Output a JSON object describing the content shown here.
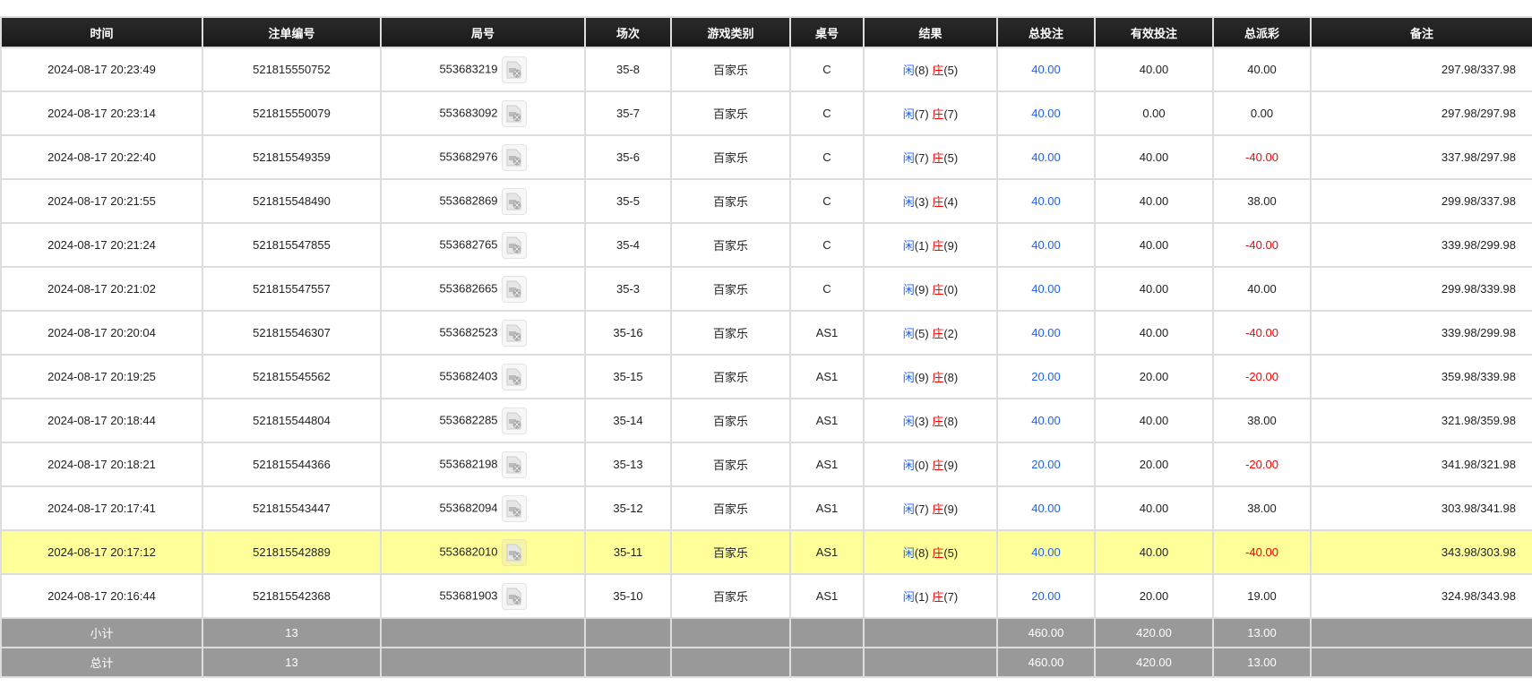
{
  "headers": [
    "时间",
    "注单编号",
    "局号",
    "场次",
    "游戏类别",
    "桌号",
    "结果",
    "总投注",
    "有效投注",
    "总派彩",
    "备注"
  ],
  "result_labels": {
    "player": "闲",
    "banker": "庄"
  },
  "colors": {
    "header_bg": "#1c1c1c",
    "player": "#1f5fff",
    "banker": "#ff0000",
    "total_bet": "#1f5fff",
    "negative_payout": "#ff0000",
    "highlight_row": "#ffff99",
    "summary_bg": "#999999"
  },
  "rows": [
    {
      "time": "2024-08-17 20:23:49",
      "bet_no": "521815550752",
      "round": "553683219",
      "session": "35-8",
      "game": "百家乐",
      "table": "C",
      "player": "(8)",
      "banker": "(5)",
      "total_bet": "40.00",
      "valid_bet": "40.00",
      "payout": "40.00",
      "note": "297.98/337.98",
      "highlight": false
    },
    {
      "time": "2024-08-17 20:23:14",
      "bet_no": "521815550079",
      "round": "553683092",
      "session": "35-7",
      "game": "百家乐",
      "table": "C",
      "player": "(7)",
      "banker": "(7)",
      "total_bet": "40.00",
      "valid_bet": "0.00",
      "payout": "0.00",
      "note": "297.98/297.98",
      "highlight": false
    },
    {
      "time": "2024-08-17 20:22:40",
      "bet_no": "521815549359",
      "round": "553682976",
      "session": "35-6",
      "game": "百家乐",
      "table": "C",
      "player": "(7)",
      "banker": "(5)",
      "total_bet": "40.00",
      "valid_bet": "40.00",
      "payout": "-40.00",
      "note": "337.98/297.98",
      "highlight": false
    },
    {
      "time": "2024-08-17 20:21:55",
      "bet_no": "521815548490",
      "round": "553682869",
      "session": "35-5",
      "game": "百家乐",
      "table": "C",
      "player": "(3)",
      "banker": "(4)",
      "total_bet": "40.00",
      "valid_bet": "40.00",
      "payout": "38.00",
      "note": "299.98/337.98",
      "highlight": false
    },
    {
      "time": "2024-08-17 20:21:24",
      "bet_no": "521815547855",
      "round": "553682765",
      "session": "35-4",
      "game": "百家乐",
      "table": "C",
      "player": "(1)",
      "banker": "(9)",
      "total_bet": "40.00",
      "valid_bet": "40.00",
      "payout": "-40.00",
      "note": "339.98/299.98",
      "highlight": false
    },
    {
      "time": "2024-08-17 20:21:02",
      "bet_no": "521815547557",
      "round": "553682665",
      "session": "35-3",
      "game": "百家乐",
      "table": "C",
      "player": "(9)",
      "banker": "(0)",
      "total_bet": "40.00",
      "valid_bet": "40.00",
      "payout": "40.00",
      "note": "299.98/339.98",
      "highlight": false
    },
    {
      "time": "2024-08-17 20:20:04",
      "bet_no": "521815546307",
      "round": "553682523",
      "session": "35-16",
      "game": "百家乐",
      "table": "AS1",
      "player": "(5)",
      "banker": "(2)",
      "total_bet": "40.00",
      "valid_bet": "40.00",
      "payout": "-40.00",
      "note": "339.98/299.98",
      "highlight": false
    },
    {
      "time": "2024-08-17 20:19:25",
      "bet_no": "521815545562",
      "round": "553682403",
      "session": "35-15",
      "game": "百家乐",
      "table": "AS1",
      "player": "(9)",
      "banker": "(8)",
      "total_bet": "20.00",
      "valid_bet": "20.00",
      "payout": "-20.00",
      "note": "359.98/339.98",
      "highlight": false
    },
    {
      "time": "2024-08-17 20:18:44",
      "bet_no": "521815544804",
      "round": "553682285",
      "session": "35-14",
      "game": "百家乐",
      "table": "AS1",
      "player": "(3)",
      "banker": "(8)",
      "total_bet": "40.00",
      "valid_bet": "40.00",
      "payout": "38.00",
      "note": "321.98/359.98",
      "highlight": false
    },
    {
      "time": "2024-08-17 20:18:21",
      "bet_no": "521815544366",
      "round": "553682198",
      "session": "35-13",
      "game": "百家乐",
      "table": "AS1",
      "player": "(0)",
      "banker": "(9)",
      "total_bet": "20.00",
      "valid_bet": "20.00",
      "payout": "-20.00",
      "note": "341.98/321.98",
      "highlight": false
    },
    {
      "time": "2024-08-17 20:17:41",
      "bet_no": "521815543447",
      "round": "553682094",
      "session": "35-12",
      "game": "百家乐",
      "table": "AS1",
      "player": "(7)",
      "banker": "(9)",
      "total_bet": "40.00",
      "valid_bet": "40.00",
      "payout": "38.00",
      "note": "303.98/341.98",
      "highlight": false
    },
    {
      "time": "2024-08-17 20:17:12",
      "bet_no": "521815542889",
      "round": "553682010",
      "session": "35-11",
      "game": "百家乐",
      "table": "AS1",
      "player": "(8)",
      "banker": "(5)",
      "total_bet": "40.00",
      "valid_bet": "40.00",
      "payout": "-40.00",
      "note": "343.98/303.98",
      "highlight": true
    },
    {
      "time": "2024-08-17 20:16:44",
      "bet_no": "521815542368",
      "round": "553681903",
      "session": "35-10",
      "game": "百家乐",
      "table": "AS1",
      "player": "(1)",
      "banker": "(7)",
      "total_bet": "20.00",
      "valid_bet": "20.00",
      "payout": "19.00",
      "note": "324.98/343.98",
      "highlight": false
    }
  ],
  "summary": [
    {
      "label": "小计",
      "count": "13",
      "total_bet": "460.00",
      "valid_bet": "420.00",
      "payout": "13.00"
    },
    {
      "label": "总计",
      "count": "13",
      "total_bet": "460.00",
      "valid_bet": "420.00",
      "payout": "13.00"
    }
  ]
}
